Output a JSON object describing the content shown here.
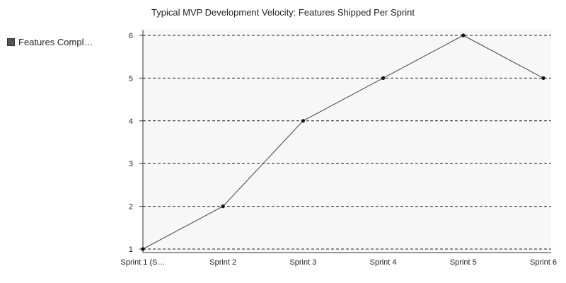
{
  "chart_data": {
    "type": "line",
    "title": "Typical MVP Development Velocity: Features Shipped Per Sprint",
    "xlabel": "",
    "ylabel": "",
    "categories": [
      "Sprint 1 (S…",
      "Sprint 2",
      "Sprint 3",
      "Sprint 4",
      "Sprint 5",
      "Sprint 6"
    ],
    "series": [
      {
        "name": "Features Compl…",
        "values": [
          1,
          2,
          4,
          5,
          6,
          5
        ]
      }
    ],
    "yticks": [
      "1",
      "2",
      "3",
      "4",
      "5",
      "6"
    ],
    "ylim": [
      1,
      6
    ],
    "grid": true,
    "legend_position": "left",
    "colors": {
      "line": "#444444",
      "point": "#111111",
      "grid": "#222222",
      "plot_bg": "#f7f7f7",
      "legend_swatch": "#555555"
    }
  }
}
